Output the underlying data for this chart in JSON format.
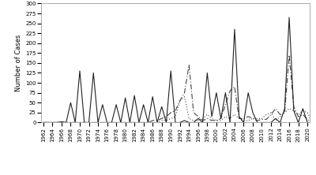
{
  "years": [
    1962,
    1963,
    1964,
    1965,
    1966,
    1967,
    1968,
    1969,
    1970,
    1971,
    1972,
    1973,
    1974,
    1975,
    1976,
    1977,
    1978,
    1979,
    1980,
    1981,
    1982,
    1983,
    1984,
    1985,
    1986,
    1987,
    1988,
    1989,
    1990,
    1991,
    1992,
    1993,
    1994,
    1995,
    1996,
    1997,
    1998,
    1999,
    2000,
    2001,
    2002,
    2003,
    2004,
    2005,
    2006,
    2007,
    2008,
    2009,
    2010,
    2011,
    2012,
    2013,
    2014,
    2015,
    2016,
    2017,
    2018,
    2019,
    2020,
    2021
  ],
  "cat0": [
    0,
    0,
    0,
    0,
    0,
    0,
    0,
    0,
    0,
    0,
    0,
    0,
    0,
    0,
    0,
    0,
    0,
    0,
    0,
    0,
    0,
    0,
    0,
    0,
    0,
    0,
    5,
    5,
    10,
    15,
    55,
    65,
    10,
    5,
    5,
    10,
    20,
    10,
    5,
    5,
    15,
    10,
    20,
    10,
    5,
    5,
    10,
    10,
    10,
    20,
    25,
    5,
    15,
    25,
    35,
    30,
    20,
    30,
    25,
    0
  ],
  "cat1": [
    0,
    0,
    0,
    0,
    0,
    0,
    0,
    0,
    0,
    0,
    0,
    0,
    0,
    0,
    0,
    0,
    0,
    0,
    0,
    0,
    0,
    0,
    0,
    0,
    5,
    5,
    10,
    15,
    25,
    30,
    55,
    75,
    145,
    25,
    15,
    5,
    10,
    5,
    5,
    10,
    45,
    80,
    90,
    10,
    10,
    15,
    10,
    5,
    8,
    8,
    20,
    35,
    20,
    25,
    170,
    40,
    15,
    20,
    8,
    0
  ],
  "cat2": [
    0,
    0,
    0,
    0,
    2,
    0,
    50,
    0,
    130,
    0,
    0,
    125,
    0,
    45,
    0,
    0,
    45,
    0,
    62,
    0,
    68,
    0,
    45,
    0,
    65,
    0,
    40,
    0,
    130,
    0,
    0,
    5,
    0,
    0,
    10,
    0,
    125,
    15,
    75,
    10,
    75,
    0,
    235,
    15,
    0,
    75,
    25,
    0,
    0,
    0,
    0,
    10,
    0,
    35,
    265,
    30,
    0,
    35,
    0,
    0
  ],
  "ylabel": "Number of Cases",
  "ylim": [
    0,
    300
  ],
  "yticks": [
    0,
    25,
    50,
    75,
    100,
    125,
    150,
    175,
    200,
    225,
    250,
    275,
    300
  ],
  "bg_color": "#ffffff",
  "xtick_start": 1962,
  "xtick_end": 2020,
  "xtick_step": 2
}
